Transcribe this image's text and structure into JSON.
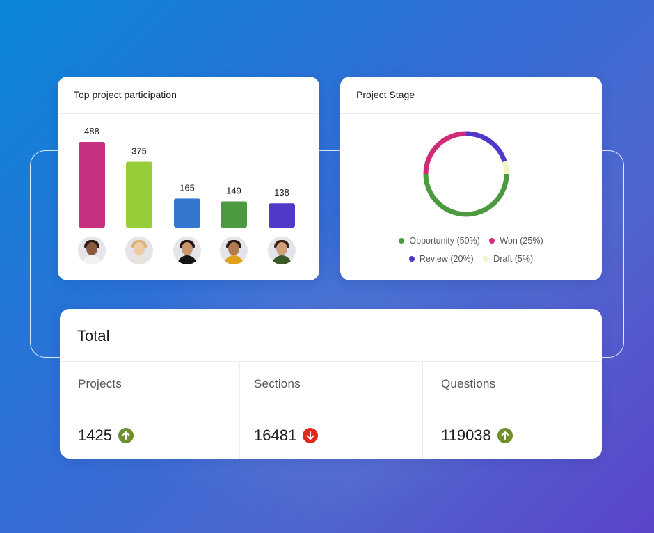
{
  "participation_card": {
    "title": "Top project participation",
    "people": [
      {
        "name": "participant-1",
        "skin": "#8a5a3c",
        "hair": "#2a1c14",
        "shirt": "#f2f2f2"
      },
      {
        "name": "participant-2",
        "skin": "#f0c9a6",
        "hair": "#d9b27a",
        "shirt": "#e6e2dc"
      },
      {
        "name": "participant-3",
        "skin": "#c99670",
        "hair": "#1e1410",
        "shirt": "#151515"
      },
      {
        "name": "participant-4",
        "skin": "#b07a52",
        "hair": "#2b1a10",
        "shirt": "#e0a21a"
      },
      {
        "name": "participant-5",
        "skin": "#d1a07a",
        "hair": "#3a2618",
        "shirt": "#3b5a2a"
      }
    ]
  },
  "chart_data": [
    {
      "type": "bar",
      "title": "Top project participation",
      "categories": [
        "participant-1",
        "participant-2",
        "participant-3",
        "participant-4",
        "participant-5"
      ],
      "values": [
        488,
        375,
        165,
        149,
        138
      ],
      "colors": [
        "#c8317f",
        "#98cd3a",
        "#3477d1",
        "#4c9a40",
        "#5138c6"
      ],
      "data_labels": [
        "488",
        "375",
        "165",
        "149",
        "138"
      ],
      "grid": false
    },
    {
      "type": "pie",
      "donut": true,
      "title": "Project Stage",
      "labels": [
        "Opportunity",
        "Won",
        "Review",
        "Draft"
      ],
      "values": [
        50,
        25,
        20,
        5
      ],
      "colors": [
        "#4c9a40",
        "#d02a78",
        "#5138c6",
        "#eef6c8"
      ],
      "legend": [
        "Opportunity (50%)",
        "Won (25%)",
        "Review (20%)",
        "Draft (5%)"
      ],
      "legend_position": "bottom"
    }
  ],
  "stage_card": {
    "title": "Project Stage"
  },
  "total_card": {
    "title": "Total",
    "stats": [
      {
        "label": "Projects",
        "value": "1425",
        "trend": "up",
        "trend_icon": "arrow-up-icon",
        "trend_color": "#6f8f2e"
      },
      {
        "label": "Sections",
        "value": "16481",
        "trend": "down",
        "trend_icon": "arrow-down-icon",
        "trend_color": "#e0281d"
      },
      {
        "label": "Questions",
        "value": "119038",
        "trend": "up",
        "trend_icon": "arrow-up-icon",
        "trend_color": "#6f8f2e"
      }
    ]
  }
}
